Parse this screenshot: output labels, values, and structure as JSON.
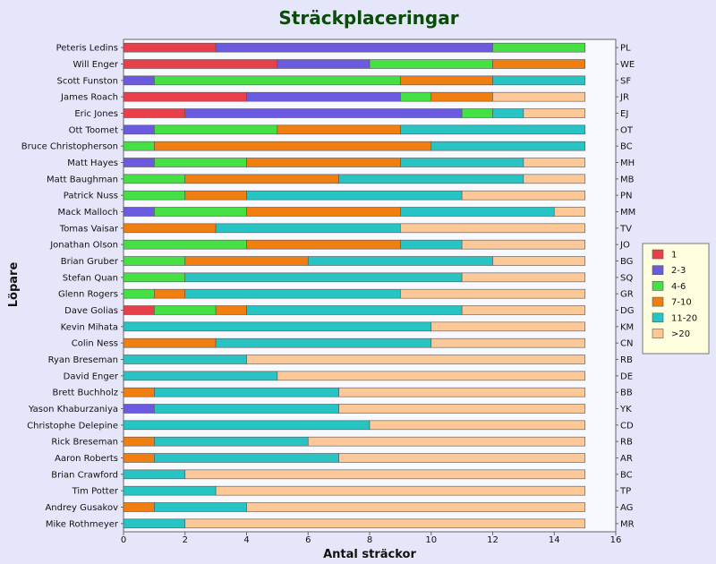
{
  "chart_data": {
    "type": "bar",
    "stacked": true,
    "orientation": "horizontal",
    "title": "Sträckplaceringar",
    "xlabel": "Antal sträckor",
    "ylabel": "Löpare",
    "xlim": [
      0,
      16
    ],
    "xticks": [
      0,
      2,
      4,
      6,
      8,
      10,
      12,
      14,
      16
    ],
    "grid": false,
    "legend_position": "right",
    "series": [
      {
        "name": "1",
        "color": "#e8404a"
      },
      {
        "name": "2-3",
        "color": "#6a5ae0"
      },
      {
        "name": "4-6",
        "color": "#44e044"
      },
      {
        "name": "7-10",
        "color": "#f07e10"
      },
      {
        "name": "11-20",
        "color": "#28c4c4"
      },
      {
        "name": ">20",
        "color": "#fcc898"
      }
    ],
    "runners": [
      {
        "name": "Peteris Ledins",
        "code": "PL",
        "values": [
          3,
          9,
          3,
          0,
          0,
          0
        ]
      },
      {
        "name": "Will Enger",
        "code": "WE",
        "values": [
          5,
          3,
          4,
          3,
          0,
          0
        ]
      },
      {
        "name": "Scott Funston",
        "code": "SF",
        "values": [
          0,
          1,
          8,
          3,
          3,
          0
        ]
      },
      {
        "name": "James Roach",
        "code": "JR",
        "values": [
          4,
          5,
          1,
          2,
          0,
          3
        ]
      },
      {
        "name": "Eric Jones",
        "code": "EJ",
        "values": [
          2,
          9,
          1,
          0,
          1,
          2
        ]
      },
      {
        "name": "Ott Toomet",
        "code": "OT",
        "values": [
          0,
          1,
          4,
          4,
          6,
          0
        ]
      },
      {
        "name": "Bruce Christopherson",
        "code": "BC",
        "values": [
          0,
          0,
          1,
          9,
          5,
          0
        ]
      },
      {
        "name": "Matt Hayes",
        "code": "MH",
        "values": [
          0,
          1,
          3,
          5,
          4,
          2
        ]
      },
      {
        "name": "Matt Baughman",
        "code": "MB",
        "values": [
          0,
          0,
          2,
          5,
          6,
          2
        ]
      },
      {
        "name": "Patrick Nuss",
        "code": "PN",
        "values": [
          0,
          0,
          2,
          2,
          7,
          4
        ]
      },
      {
        "name": "Mack Malloch",
        "code": "MM",
        "values": [
          0,
          1,
          3,
          5,
          5,
          1
        ]
      },
      {
        "name": "Tomas Vaisar",
        "code": "TV",
        "values": [
          0,
          0,
          0,
          3,
          6,
          6
        ]
      },
      {
        "name": "Jonathan Olson",
        "code": "JO",
        "values": [
          0,
          0,
          4,
          5,
          2,
          4
        ]
      },
      {
        "name": "Brian Gruber",
        "code": "BG",
        "values": [
          0,
          0,
          2,
          4,
          6,
          3
        ]
      },
      {
        "name": "Stefan Quan",
        "code": "SQ",
        "values": [
          0,
          0,
          2,
          0,
          9,
          4
        ]
      },
      {
        "name": "Glenn Rogers",
        "code": "GR",
        "values": [
          0,
          0,
          1,
          1,
          7,
          6
        ]
      },
      {
        "name": "Dave Golias",
        "code": "DG",
        "values": [
          1,
          0,
          2,
          1,
          7,
          4
        ]
      },
      {
        "name": "Kevin Mihata",
        "code": "KM",
        "values": [
          0,
          0,
          0,
          0,
          10,
          5
        ]
      },
      {
        "name": "Colin Ness",
        "code": "CN",
        "values": [
          0,
          0,
          0,
          3,
          7,
          5
        ]
      },
      {
        "name": "Ryan Breseman",
        "code": "RB",
        "values": [
          0,
          0,
          0,
          0,
          4,
          11
        ]
      },
      {
        "name": "David Enger",
        "code": "DE",
        "values": [
          0,
          0,
          0,
          0,
          5,
          10
        ]
      },
      {
        "name": "Brett Buchholz",
        "code": "BB",
        "values": [
          0,
          0,
          0,
          1,
          6,
          8
        ]
      },
      {
        "name": "Yason Khaburzaniya",
        "code": "YK",
        "values": [
          0,
          1,
          0,
          0,
          6,
          8
        ]
      },
      {
        "name": "Christophe Delepine",
        "code": "CD",
        "values": [
          0,
          0,
          0,
          0,
          8,
          7
        ]
      },
      {
        "name": "Rick Breseman",
        "code": "RB",
        "values": [
          0,
          0,
          0,
          1,
          5,
          9
        ]
      },
      {
        "name": "Aaron Roberts",
        "code": "AR",
        "values": [
          0,
          0,
          0,
          1,
          6,
          8
        ]
      },
      {
        "name": "Brian Crawford",
        "code": "BC",
        "values": [
          0,
          0,
          0,
          0,
          2,
          13
        ]
      },
      {
        "name": "Tim Potter",
        "code": "TP",
        "values": [
          0,
          0,
          0,
          0,
          3,
          12
        ]
      },
      {
        "name": "Andrey Gusakov",
        "code": "AG",
        "values": [
          0,
          0,
          0,
          1,
          3,
          11
        ]
      },
      {
        "name": "Mike Rothmeyer",
        "code": "MR",
        "values": [
          0,
          0,
          0,
          0,
          2,
          13
        ]
      }
    ]
  }
}
